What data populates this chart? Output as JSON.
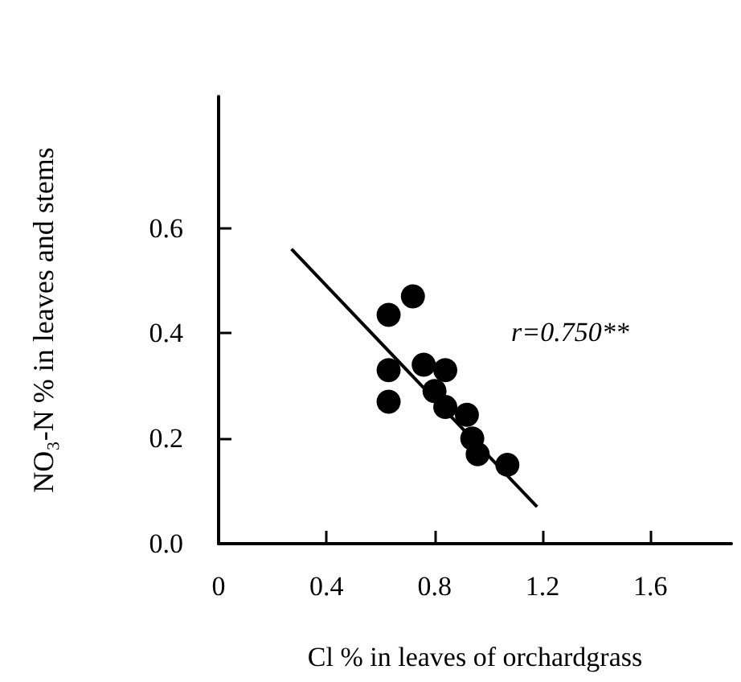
{
  "chart_data": {
    "type": "scatter",
    "xlabel": "Cl % in leaves of orchardgrass",
    "ylabel": "NO₃-N % in leaves and stems",
    "annotations": [
      "r=0.750**"
    ],
    "xlim": [
      0,
      1.9
    ],
    "xticks": [
      0,
      0.4,
      0.8,
      1.2,
      1.6
    ],
    "ylim": [
      0,
      0.85
    ],
    "yticks": [
      {
        "value": 0,
        "label": "0.0"
      },
      0.2,
      0.4,
      0.6
    ],
    "grid": false,
    "marker": "circle",
    "series": [
      {
        "color": "#000000",
        "x": [
          0.63,
          0.72,
          0.63,
          0.63,
          0.76,
          0.84,
          0.8,
          0.84,
          0.92,
          0.94,
          0.96,
          1.07
        ],
        "values": [
          0.435,
          0.47,
          0.33,
          0.27,
          0.34,
          0.33,
          0.29,
          0.26,
          0.245,
          0.2,
          0.17,
          0.15
        ]
      },
      {
        "type": "line",
        "color": "#000000",
        "marker": "none",
        "line_style": "solid",
        "x": [
          0.27,
          1.18
        ],
        "values": [
          0.56,
          0.07
        ]
      }
    ]
  }
}
